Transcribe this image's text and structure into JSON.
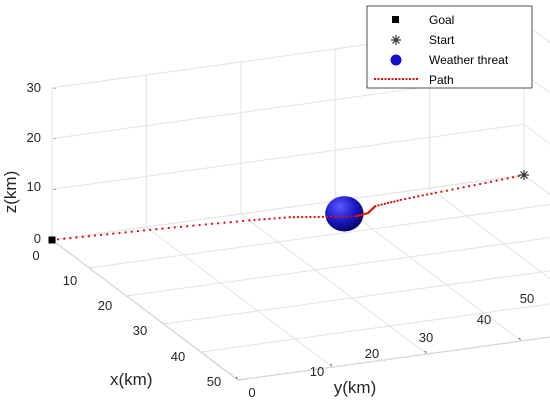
{
  "chart_data": {
    "type": "line3d",
    "title": "",
    "xlabel": "x(km)",
    "ylabel": "y(km)",
    "zlabel": "z(km)",
    "xlim": [
      0,
      50
    ],
    "ylim": [
      0,
      50
    ],
    "zlim": [
      0,
      30
    ],
    "xticks": [
      "0",
      "10",
      "20",
      "30",
      "40",
      "50"
    ],
    "yticks": [
      "0",
      "10",
      "20",
      "30",
      "40",
      "50"
    ],
    "zticks": [
      "0",
      "10",
      "20",
      "30"
    ],
    "grid": true,
    "legend_position": "top-right",
    "legend": [
      {
        "label": "Goal",
        "marker": "square",
        "color": "#000000"
      },
      {
        "label": "Start",
        "marker": "asterisk",
        "color": "#333333"
      },
      {
        "label": "Weather threat",
        "marker": "circle",
        "color": "#1010c8"
      },
      {
        "label": "Path",
        "marker": "dotted-line",
        "color": "#e01010"
      }
    ],
    "goal": {
      "x": 0,
      "y": 0,
      "z": 0
    },
    "start": {
      "x": 0,
      "y": 50,
      "z": 0
    },
    "weather_threat": {
      "x": 5,
      "y": 29,
      "z": 0.5,
      "radius": 3
    },
    "path": [
      {
        "x": 0,
        "y": 0,
        "z": 0
      },
      {
        "x": 0.5,
        "y": 5,
        "z": 0
      },
      {
        "x": 1,
        "y": 10,
        "z": 0
      },
      {
        "x": 1.6,
        "y": 15,
        "z": 0
      },
      {
        "x": 2.3,
        "y": 20,
        "z": 0
      },
      {
        "x": 3,
        "y": 24,
        "z": 0
      },
      {
        "x": 4.3,
        "y": 27,
        "z": 0
      },
      {
        "x": 5.5,
        "y": 30,
        "z": 0
      },
      {
        "x": 5.0,
        "y": 31.5,
        "z": 0
      },
      {
        "x": 3.2,
        "y": 33,
        "z": 0
      },
      {
        "x": 2.4,
        "y": 36,
        "z": 0
      },
      {
        "x": 1.7,
        "y": 40,
        "z": 0
      },
      {
        "x": 0.9,
        "y": 45,
        "z": 0
      },
      {
        "x": 0,
        "y": 50,
        "z": 0
      }
    ]
  }
}
